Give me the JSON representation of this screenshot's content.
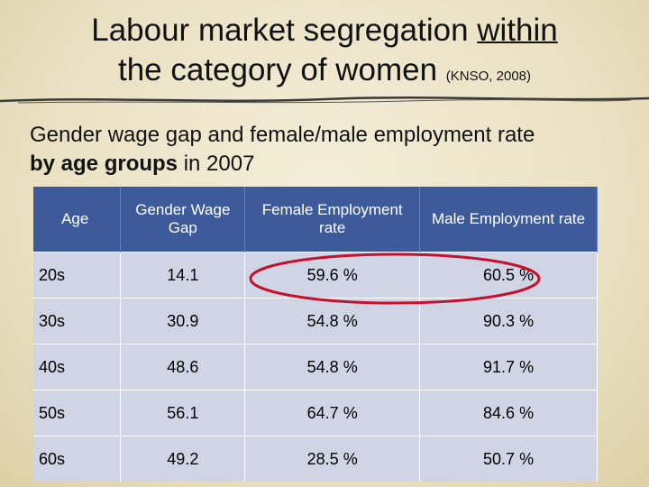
{
  "title": {
    "lead": "Labour market segregation",
    "underlined": "within",
    "tail": "the category of women",
    "source": "(KNSO, 2008)"
  },
  "subtitle": {
    "lead": "Gender wage gap and female/male employment rate",
    "bold": "by age groups",
    "tail": "in 2007"
  },
  "table": {
    "header": [
      "Age",
      "Gender Wage Gap",
      "Female Employment rate",
      "Male Employment rate"
    ],
    "rows": [
      [
        "20s",
        "14.1",
        "59.6 %",
        "60.5 %"
      ],
      [
        "30s",
        "30.9",
        "54.8 %",
        "90.3 %"
      ],
      [
        "40s",
        "48.6",
        "54.8 %",
        "91.7 %"
      ],
      [
        "50s",
        "56.1",
        "64.7 %",
        "84.6 %"
      ],
      [
        "60s",
        "49.2",
        "28.5 %",
        "50.7 %"
      ]
    ]
  }
}
